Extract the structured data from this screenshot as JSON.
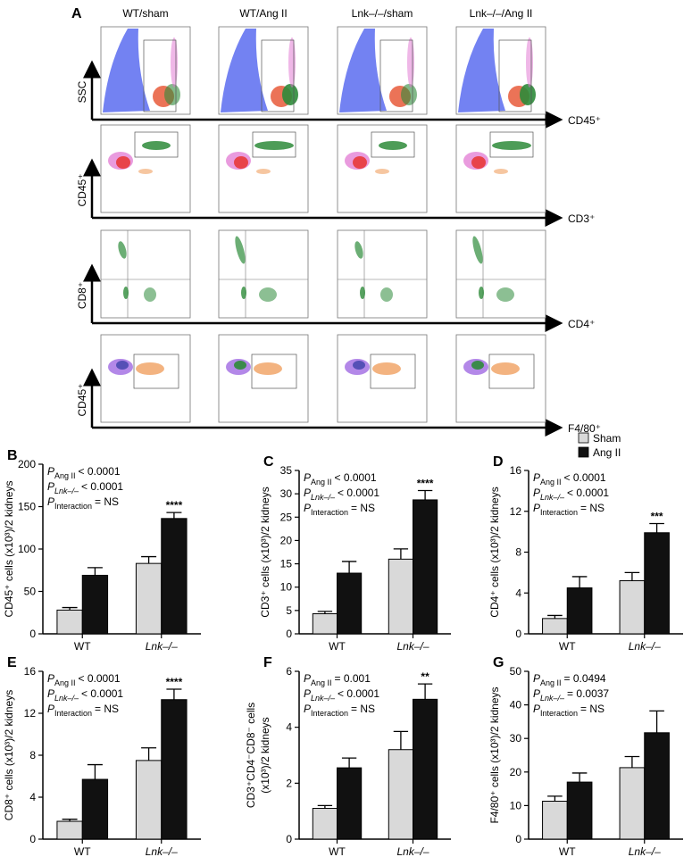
{
  "flow_panel": {
    "panel": "A",
    "columns": [
      "WT/sham",
      "WT/Ang II",
      "Lnk–/–/sham",
      "Lnk–/–/Ang II"
    ],
    "rows": [
      {
        "y_label": "SSC",
        "x_label": "CD45⁺"
      },
      {
        "y_label": "CD45⁺",
        "x_label": "CD3⁺"
      },
      {
        "y_label": "CD8⁺",
        "x_label": "CD4⁺"
      },
      {
        "y_label": "CD45⁺",
        "x_label": "F4/80⁺"
      }
    ]
  },
  "legend": {
    "corner": "top-right",
    "entries": [
      {
        "name": "Sham",
        "color": "#d9d9d9"
      },
      {
        "name": "Ang II",
        "color": "#111111"
      }
    ]
  },
  "chart_data": [
    {
      "type": "bar",
      "panel": "B",
      "y_label": [
        "CD45⁺ cells (x10³)/2 kidneys"
      ],
      "categories": [
        "WT",
        "Lnk–/–"
      ],
      "series": [
        {
          "values": [
            28,
            83
          ],
          "errors": [
            3,
            8
          ]
        },
        {
          "values": [
            69,
            136
          ],
          "errors": [
            9,
            7
          ]
        }
      ],
      "ylim": [
        0,
        200
      ],
      "yticks": [
        0,
        50,
        100,
        150,
        200
      ],
      "significance": "****",
      "annotations": [
        {
          "symbol": "P",
          "subscript": "Ang II",
          "text": "< 0.0001"
        },
        {
          "symbol": "P",
          "subscript": "Lnk–/–",
          "text": "< 0.0001"
        },
        {
          "symbol": "P",
          "subscript": "Interaction",
          "text": "= NS"
        }
      ]
    },
    {
      "type": "bar",
      "panel": "C",
      "y_label": [
        "CD3⁺ cells (x10³)/2 kidneys"
      ],
      "categories": [
        "WT",
        "Lnk–/–"
      ],
      "series": [
        {
          "values": [
            4.3,
            16
          ],
          "errors": [
            0.5,
            2.2
          ]
        },
        {
          "values": [
            13,
            28.7
          ],
          "errors": [
            2.5,
            2
          ]
        }
      ],
      "ylim": [
        0,
        35
      ],
      "yticks": [
        0,
        5,
        10,
        15,
        20,
        25,
        30,
        35
      ],
      "significance": "****",
      "annotations": [
        {
          "symbol": "P",
          "subscript": "Ang II",
          "text": "< 0.0001"
        },
        {
          "symbol": "P",
          "subscript": "Lnk–/–",
          "text": "< 0.0001"
        },
        {
          "symbol": "P",
          "subscript": "Interaction",
          "text": "= NS"
        }
      ]
    },
    {
      "type": "bar",
      "panel": "D",
      "y_label": [
        "CD4⁺ cells (x10³)/2 kidneys"
      ],
      "categories": [
        "WT",
        "Lnk–/–"
      ],
      "series": [
        {
          "values": [
            1.5,
            5.2
          ],
          "errors": [
            0.3,
            0.8
          ]
        },
        {
          "values": [
            4.5,
            9.9
          ],
          "errors": [
            1.1,
            0.9
          ]
        }
      ],
      "ylim": [
        0,
        16
      ],
      "yticks": [
        0,
        4,
        8,
        12,
        16
      ],
      "significance": "***",
      "annotations": [
        {
          "symbol": "P",
          "subscript": "Ang II",
          "text": "< 0.0001"
        },
        {
          "symbol": "P",
          "subscript": "Lnk–/–",
          "text": "< 0.0001"
        },
        {
          "symbol": "P",
          "subscript": "Interaction",
          "text": "= NS"
        }
      ]
    },
    {
      "type": "bar",
      "panel": "E",
      "y_label": [
        "CD8⁺ cells (x10³)/2 kidneys"
      ],
      "categories": [
        "WT",
        "Lnk–/–"
      ],
      "series": [
        {
          "values": [
            1.7,
            7.5
          ],
          "errors": [
            0.2,
            1.2
          ]
        },
        {
          "values": [
            5.7,
            13.3
          ],
          "errors": [
            1.4,
            1
          ]
        }
      ],
      "ylim": [
        0,
        16
      ],
      "yticks": [
        0,
        4,
        8,
        12,
        16
      ],
      "significance": "****",
      "annotations": [
        {
          "symbol": "P",
          "subscript": "Ang II",
          "text": "< 0.0001"
        },
        {
          "symbol": "P",
          "subscript": "Lnk–/–",
          "text": "< 0.0001"
        },
        {
          "symbol": "P",
          "subscript": "Interaction",
          "text": "= NS"
        }
      ]
    },
    {
      "type": "bar",
      "panel": "F",
      "y_label": [
        "CD3⁺CD4⁻CD8⁻ cells",
        "(x10³)/2 kidneys"
      ],
      "categories": [
        "WT",
        "Lnk–/–"
      ],
      "series": [
        {
          "values": [
            1.1,
            3.2
          ],
          "errors": [
            0.1,
            0.65
          ]
        },
        {
          "values": [
            2.55,
            5.0
          ],
          "errors": [
            0.35,
            0.55
          ]
        }
      ],
      "ylim": [
        0,
        6
      ],
      "yticks": [
        0,
        2,
        4,
        6
      ],
      "significance": "**",
      "annotations": [
        {
          "symbol": "P",
          "subscript": "Ang II",
          "text": "= 0.001"
        },
        {
          "symbol": "P",
          "subscript": "Lnk–/–",
          "text": "< 0.0001"
        },
        {
          "symbol": "P",
          "subscript": "Interaction",
          "text": "= NS"
        }
      ]
    },
    {
      "type": "bar",
      "panel": "G",
      "y_label": [
        "F4/80⁺ cells (x10³)/2 kidneys"
      ],
      "categories": [
        "WT",
        "Lnk–/–"
      ],
      "series": [
        {
          "values": [
            11.3,
            21.3
          ],
          "errors": [
            1.5,
            3.3
          ]
        },
        {
          "values": [
            17,
            31.7
          ],
          "errors": [
            2.7,
            6.5
          ]
        }
      ],
      "ylim": [
        0,
        50
      ],
      "yticks": [
        0,
        10,
        20,
        30,
        40,
        50
      ],
      "annotations": [
        {
          "symbol": "P",
          "subscript": "Ang II",
          "text": "= 0.0494"
        },
        {
          "symbol": "P",
          "subscript": "Lnk–/–",
          "text": "= 0.0037"
        },
        {
          "symbol": "P",
          "subscript": "Interaction",
          "text": "= NS"
        }
      ]
    }
  ]
}
